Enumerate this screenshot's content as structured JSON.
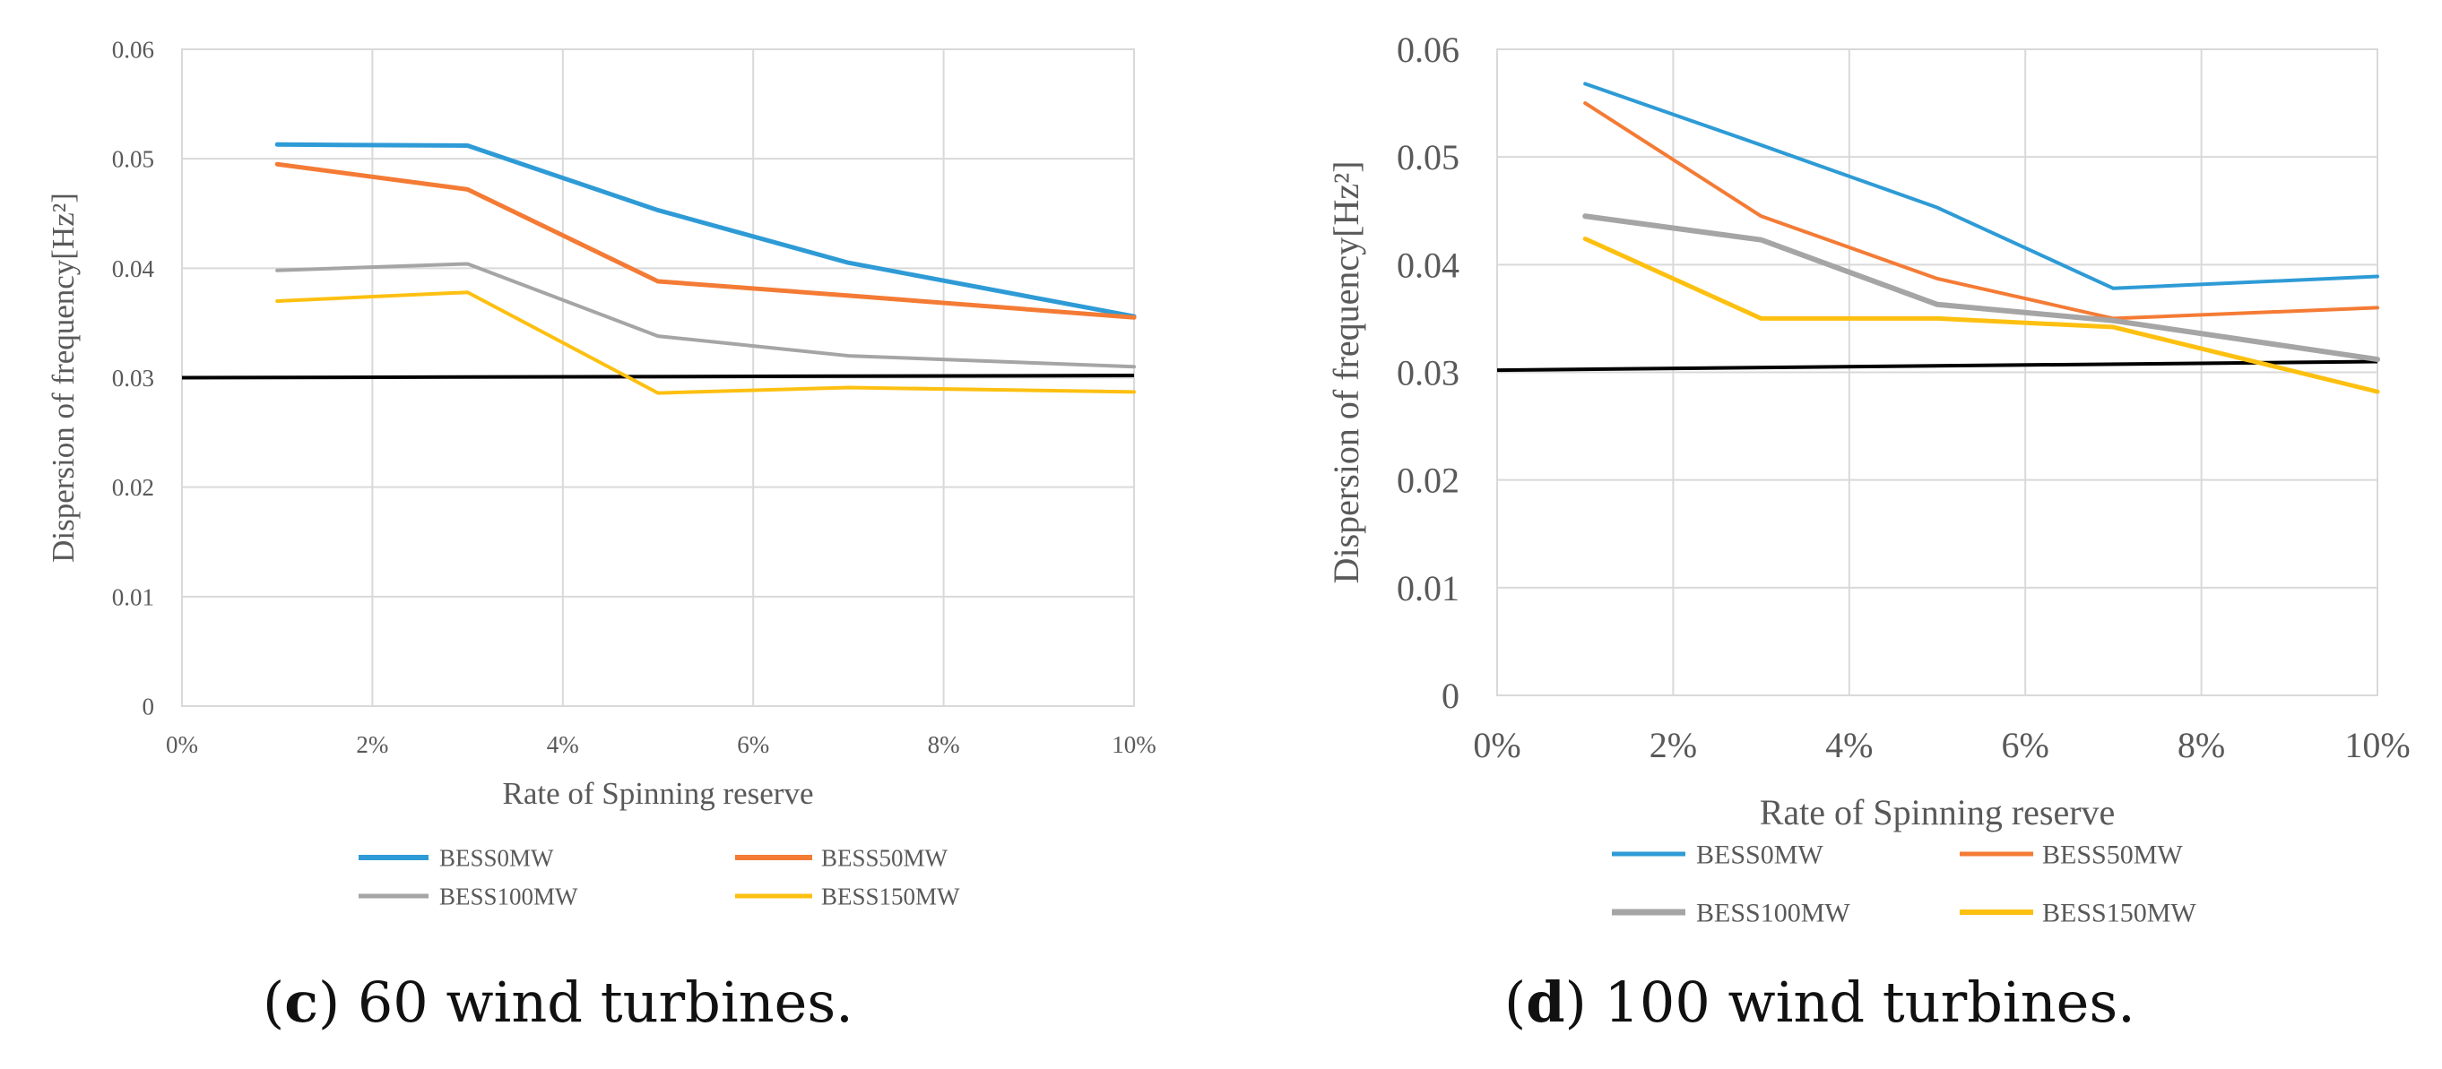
{
  "colors": {
    "BESS0MW": "#2e9bd6",
    "BESS50MW": "#f47b35",
    "BESS100MW": "#a5a5a5",
    "BESS150MW": "#fdc011",
    "reference": "#000000",
    "grid": "#d9d9d9"
  },
  "chart_data": [
    {
      "type": "line",
      "caption_letter": "c",
      "caption_text": ") 60 wind turbines.",
      "caption_open": "(",
      "xlabel": "Rate of Spinning  reserve",
      "ylabel": "Dispersion of frequency[Hz²]",
      "xlim": [
        0,
        10
      ],
      "ylim": [
        0,
        0.06
      ],
      "x_ticks": [
        "0%",
        "2%",
        "4%",
        "6%",
        "8%",
        "10%"
      ],
      "y_ticks": [
        "0",
        "0.01",
        "0.02",
        "0.03",
        "0.04",
        "0.05",
        "0.06"
      ],
      "grid": true,
      "legend_position": "bottom",
      "x": [
        1,
        3,
        5,
        7,
        10
      ],
      "series": [
        {
          "name": "BESS0MW",
          "values": [
            0.0513,
            0.0512,
            0.0453,
            0.0405,
            0.0356
          ]
        },
        {
          "name": "BESS50MW",
          "values": [
            0.0495,
            0.0472,
            0.0388,
            0.0375,
            0.0355
          ]
        },
        {
          "name": "BESS100MW",
          "values": [
            0.0398,
            0.0404,
            0.0338,
            0.032,
            0.031
          ]
        },
        {
          "name": "BESS150MW",
          "values": [
            0.037,
            0.0378,
            0.0286,
            0.0291,
            0.0287
          ]
        }
      ],
      "reference_line": {
        "x": [
          0,
          10
        ],
        "values": [
          0.03,
          0.0302
        ]
      }
    },
    {
      "type": "line",
      "caption_letter": "d",
      "caption_text": ") 100 wind turbines.",
      "caption_open": "(",
      "xlabel": "Rate of Spinning reserve",
      "ylabel": "Dispersion of frequency[Hz²]",
      "xlim": [
        0,
        10
      ],
      "ylim": [
        0,
        0.06
      ],
      "x_ticks": [
        "0%",
        "2%",
        "4%",
        "6%",
        "8%",
        "10%"
      ],
      "y_ticks": [
        "0",
        "0.01",
        "0.02",
        "0.03",
        "0.04",
        "0.05",
        "0.06"
      ],
      "grid": true,
      "legend_position": "bottom",
      "x": [
        1,
        3,
        5,
        7,
        10
      ],
      "series": [
        {
          "name": "BESS0MW",
          "values": [
            0.0568,
            0.0511,
            0.0453,
            0.0378,
            0.0389
          ]
        },
        {
          "name": "BESS50MW",
          "values": [
            0.055,
            0.0445,
            0.0387,
            0.035,
            0.036
          ]
        },
        {
          "name": "BESS100MW",
          "values": [
            0.0445,
            0.0423,
            0.0363,
            0.0348,
            0.0312
          ]
        },
        {
          "name": "BESS150MW",
          "values": [
            0.0424,
            0.035,
            0.035,
            0.0342,
            0.0282
          ]
        }
      ],
      "reference_line": {
        "x": [
          0,
          10
        ],
        "values": [
          0.0302,
          0.031
        ]
      }
    }
  ]
}
